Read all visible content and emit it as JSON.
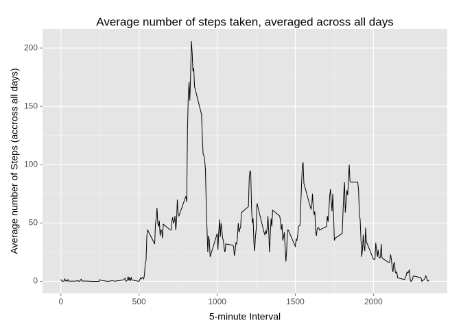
{
  "chart_data": {
    "type": "line",
    "title": "Average number of steps taken, averaged across all days",
    "x_label": "5-minute Interval",
    "y_label": "Average number of Steps (accross all days)",
    "xlim": [
      -117.75,
      2472.75
    ],
    "ylim": [
      -10.3,
      216.5
    ],
    "xticks": [
      0,
      500,
      1000,
      1500,
      2000
    ],
    "yticks": [
      0,
      50,
      100,
      150,
      200
    ],
    "grid": true,
    "minor_grid": true,
    "series": [
      {
        "color": "#000000",
        "x": [
          0,
          5,
          10,
          15,
          20,
          25,
          30,
          35,
          40,
          45,
          50,
          55,
          100,
          105,
          110,
          115,
          120,
          125,
          130,
          135,
          140,
          145,
          150,
          200,
          230,
          245,
          250,
          255,
          300,
          330,
          345,
          400,
          410,
          415,
          420,
          425,
          430,
          435,
          440,
          445,
          450,
          455,
          500,
          505,
          510,
          515,
          520,
          525,
          530,
          535,
          540,
          545,
          550,
          555,
          600,
          605,
          610,
          615,
          620,
          625,
          630,
          635,
          640,
          645,
          650,
          655,
          700,
          705,
          710,
          715,
          720,
          725,
          730,
          735,
          740,
          745,
          750,
          755,
          800,
          805,
          810,
          815,
          820,
          825,
          830,
          835,
          840,
          845,
          850,
          855,
          900,
          905,
          910,
          915,
          920,
          925,
          930,
          935,
          940,
          945,
          950,
          955,
          1000,
          1005,
          1010,
          1015,
          1020,
          1025,
          1030,
          1035,
          1040,
          1045,
          1050,
          1055,
          1100,
          1105,
          1110,
          1115,
          1120,
          1125,
          1130,
          1135,
          1140,
          1145,
          1150,
          1155,
          1200,
          1205,
          1210,
          1215,
          1220,
          1225,
          1230,
          1235,
          1240,
          1245,
          1250,
          1255,
          1300,
          1305,
          1310,
          1315,
          1320,
          1325,
          1330,
          1335,
          1340,
          1345,
          1350,
          1355,
          1400,
          1405,
          1410,
          1415,
          1420,
          1425,
          1430,
          1435,
          1440,
          1445,
          1450,
          1455,
          1500,
          1505,
          1510,
          1515,
          1520,
          1525,
          1530,
          1535,
          1540,
          1545,
          1550,
          1555,
          1600,
          1605,
          1610,
          1615,
          1620,
          1625,
          1630,
          1635,
          1640,
          1645,
          1650,
          1655,
          1700,
          1705,
          1710,
          1715,
          1720,
          1725,
          1730,
          1735,
          1740,
          1745,
          1750,
          1755,
          1800,
          1805,
          1810,
          1815,
          1820,
          1825,
          1830,
          1835,
          1840,
          1845,
          1850,
          1855,
          1900,
          1905,
          1910,
          1915,
          1920,
          1925,
          1930,
          1935,
          1940,
          1945,
          1950,
          1955,
          2000,
          2005,
          2010,
          2015,
          2020,
          2025,
          2030,
          2035,
          2040,
          2045,
          2050,
          2055,
          2100,
          2105,
          2110,
          2115,
          2120,
          2125,
          2130,
          2135,
          2140,
          2145,
          2150,
          2155,
          2200,
          2205,
          2210,
          2215,
          2220,
          2225,
          2230,
          2235,
          2240,
          2245,
          2250,
          2255,
          2300,
          2305,
          2310,
          2315,
          2320,
          2325,
          2330,
          2335,
          2340,
          2345,
          2350,
          2355
        ],
        "values": [
          1.7,
          0.3,
          0.1,
          0.2,
          0.1,
          2.1,
          0.5,
          0.9,
          0,
          1.5,
          0.3,
          0.1,
          0.3,
          0.7,
          0.2,
          0.3,
          0,
          1.1,
          1.8,
          0.2,
          0.2,
          0.3,
          0.3,
          0,
          0,
          0,
          1.5,
          0.9,
          0,
          0.6,
          0.1,
          1.2,
          2.6,
          0,
          0.3,
          0.9,
          4.1,
          0.7,
          3.5,
          0.8,
          3.1,
          1.1,
          0,
          1.6,
          3,
          2.2,
          3.3,
          3,
          2.1,
          6.1,
          16,
          18,
          39,
          44,
          32,
          49,
          54,
          63,
          50,
          47,
          52,
          39,
          44,
          44,
          37,
          49,
          44,
          44,
          51,
          55,
          50,
          51,
          56,
          44,
          52,
          70,
          58,
          56,
          73,
          68,
          129,
          158,
          171,
          155,
          177,
          206,
          196,
          180,
          183,
          167,
          143,
          124,
          109,
          108,
          104,
          96,
          66,
          45,
          25,
          39,
          35,
          21,
          41,
          27,
          42,
          53,
          38,
          50,
          44,
          37,
          35,
          28,
          25,
          32,
          31,
          30,
          22,
          26,
          33,
          32,
          38,
          50,
          42,
          45,
          46,
          59,
          64,
          88,
          95,
          93,
          63,
          50,
          54,
          33,
          26,
          38,
          45,
          67,
          42,
          40,
          43,
          41,
          46,
          56,
          43,
          25,
          40,
          54,
          47,
          61,
          56,
          52,
          44,
          49,
          35,
          38,
          42,
          28,
          17,
          27,
          44,
          44,
          30,
          36,
          35,
          39,
          46,
          48,
          48,
          65,
          83,
          99,
          102,
          84,
          62,
          64,
          75,
          63,
          57,
          60,
          44,
          39,
          45,
          46,
          46,
          44,
          47,
          56,
          51,
          61,
          73,
          79,
          69,
          60,
          75,
          57,
          35,
          37,
          41,
          58,
          75,
          85,
          59,
          68,
          78,
          74,
          85,
          100,
          86,
          85,
          85,
          78,
          58,
          53,
          37,
          21,
          27,
          40,
          30,
          26,
          46,
          34,
          19,
          19,
          19,
          33,
          27,
          21,
          27,
          21,
          20,
          21,
          32,
          20,
          16,
          17,
          23,
          19,
          12,
          8,
          15,
          16,
          8,
          7,
          8,
          3,
          1.5,
          4,
          5,
          8,
          7,
          8,
          10,
          2,
          0,
          0.1,
          1.6,
          4.6,
          3.3,
          3,
          0,
          0.8,
          1,
          1.6,
          2.6,
          4.7,
          3.3,
          0.6,
          0.2,
          1.1
        ]
      }
    ]
  }
}
